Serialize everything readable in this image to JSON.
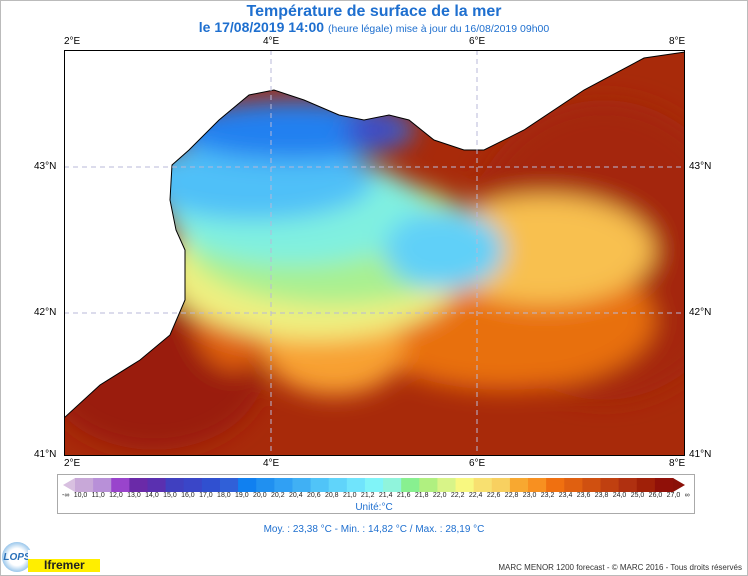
{
  "header": {
    "title": "Température de surface de la mer",
    "date": "le 17/08/2019 14:00",
    "note": "(heure légale) mise à jour du 16/08/2019 09h00"
  },
  "axes": {
    "lon": [
      "2°E",
      "4°E",
      "6°E",
      "8°E"
    ],
    "lat": [
      "43°N",
      "42°N",
      "41°N"
    ]
  },
  "colorbar": {
    "labels": [
      "-∞",
      "10,0",
      "11,0",
      "12,0",
      "13,0",
      "14,0",
      "15,0",
      "16,0",
      "17,0",
      "18,0",
      "19,0",
      "20,0",
      "20,2",
      "20,4",
      "20,6",
      "20,8",
      "21,0",
      "21,2",
      "21,4",
      "21,6",
      "21,8",
      "22,0",
      "22,2",
      "22,4",
      "22,6",
      "22,8",
      "23,0",
      "23,2",
      "23,4",
      "23,6",
      "23,8",
      "24,0",
      "25,0",
      "26,0",
      "27,0",
      "∞"
    ],
    "colors": [
      "#d8c0e0",
      "#c8a8d8",
      "#b890d8",
      "#9944cc",
      "#6a2aa8",
      "#5a30b0",
      "#4040c0",
      "#3a46c8",
      "#3050d0",
      "#3060d8",
      "#1080f0",
      "#2090f0",
      "#30a0f4",
      "#40b0f4",
      "#50c4f8",
      "#60d4fa",
      "#70e4fc",
      "#80f4f8",
      "#90f4dc",
      "#88f090",
      "#b0f080",
      "#d8f488",
      "#f8f880",
      "#f8e070",
      "#f8d060",
      "#f8a830",
      "#f89020",
      "#f07010",
      "#e06010",
      "#d05010",
      "#c04010",
      "#b03010",
      "#a02008",
      "#901008",
      "#8a1008"
    ],
    "unit": "Unité:°C"
  },
  "stats": "Moy. : 23,38 °C   -   Min. : 14,82 °C / Max. : 28,19 °C",
  "logos": {
    "lops": "LOPS",
    "ifremer": "Ifremer"
  },
  "footer": "MARC MENOR 1200 forecast - © MARC 2016 - Tous droits réservés"
}
